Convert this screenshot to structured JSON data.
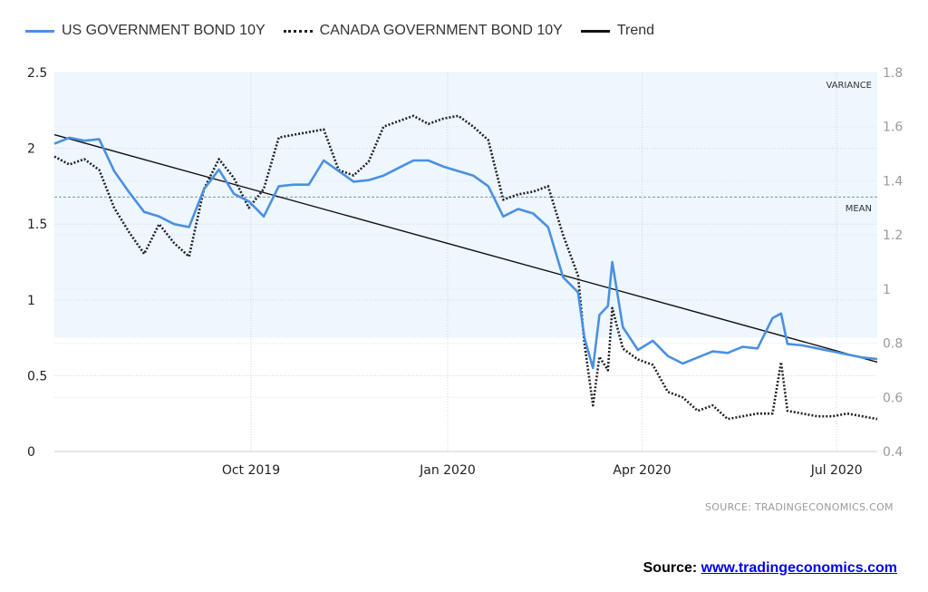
{
  "legend": {
    "us": "US GOVERNMENT BOND 10Y",
    "canada": "CANADA GOVERNMENT BOND 10Y",
    "trend": "Trend"
  },
  "annotations": {
    "variance": "VARIANCE",
    "mean": "MEAN"
  },
  "source_small": "SOURCE:  TRADINGECONOMICS.COM",
  "source_big": {
    "label": "Source:",
    "link": "www.tradingeconomics.com"
  },
  "colors": {
    "us": "#4a90e2",
    "canada": "#222222",
    "trend": "#111111",
    "variance_band": "#eef6fe",
    "mean_line": "#7a9a9a"
  },
  "chart_data": {
    "type": "line",
    "title": "",
    "x_tick_labels": [
      "Oct 2019",
      "Jan 2020",
      "Apr 2020",
      "Jul 2020"
    ],
    "x_tick_dates": [
      "2019-10-01",
      "2020-01-01",
      "2020-04-01",
      "2020-07-01"
    ],
    "x_range": [
      "2019-07-01",
      "2020-07-20"
    ],
    "y_left": {
      "ticks": [
        "0",
        "0.5",
        "1",
        "1.5",
        "2",
        "2.5"
      ],
      "range": [
        0,
        2.5
      ]
    },
    "y_right": {
      "ticks": [
        "0.4",
        "0.6",
        "0.8",
        "1",
        "1.2",
        "1.4",
        "1.6",
        "1.8"
      ],
      "range": [
        0.4,
        1.8
      ]
    },
    "mean_right": 1.34,
    "variance_band_left": [
      0.75,
      2.5
    ],
    "series": [
      {
        "name": "US GOVERNMENT BOND 10Y",
        "axis": "left",
        "style": "solid",
        "x": [
          "2019-07-01",
          "2019-07-08",
          "2019-07-15",
          "2019-07-22",
          "2019-07-29",
          "2019-08-05",
          "2019-08-12",
          "2019-08-19",
          "2019-08-26",
          "2019-09-02",
          "2019-09-09",
          "2019-09-16",
          "2019-09-23",
          "2019-09-30",
          "2019-10-07",
          "2019-10-14",
          "2019-10-21",
          "2019-10-28",
          "2019-11-04",
          "2019-11-11",
          "2019-11-18",
          "2019-11-25",
          "2019-12-02",
          "2019-12-09",
          "2019-12-16",
          "2019-12-23",
          "2019-12-30",
          "2020-01-06",
          "2020-01-13",
          "2020-01-20",
          "2020-01-27",
          "2020-02-03",
          "2020-02-10",
          "2020-02-17",
          "2020-02-24",
          "2020-03-02",
          "2020-03-05",
          "2020-03-09",
          "2020-03-12",
          "2020-03-16",
          "2020-03-18",
          "2020-03-23",
          "2020-03-30",
          "2020-04-06",
          "2020-04-13",
          "2020-04-20",
          "2020-04-27",
          "2020-05-04",
          "2020-05-11",
          "2020-05-18",
          "2020-05-25",
          "2020-06-01",
          "2020-06-05",
          "2020-06-08",
          "2020-06-15",
          "2020-06-22",
          "2020-06-29",
          "2020-07-06",
          "2020-07-13",
          "2020-07-20"
        ],
        "y": [
          2.03,
          2.07,
          2.05,
          2.06,
          1.85,
          1.71,
          1.58,
          1.55,
          1.5,
          1.48,
          1.73,
          1.86,
          1.7,
          1.65,
          1.55,
          1.75,
          1.76,
          1.76,
          1.92,
          1.85,
          1.78,
          1.79,
          1.82,
          1.87,
          1.92,
          1.92,
          1.88,
          1.85,
          1.82,
          1.75,
          1.55,
          1.6,
          1.57,
          1.48,
          1.15,
          1.05,
          0.75,
          0.55,
          0.9,
          0.96,
          1.25,
          0.82,
          0.67,
          0.73,
          0.63,
          0.58,
          0.62,
          0.66,
          0.65,
          0.69,
          0.68,
          0.88,
          0.91,
          0.71,
          0.7,
          0.68,
          0.66,
          0.64,
          0.62,
          0.61
        ]
      },
      {
        "name": "CANADA GOVERNMENT BOND 10Y",
        "axis": "right",
        "style": "dotted",
        "x": [
          "2019-07-01",
          "2019-07-08",
          "2019-07-15",
          "2019-07-22",
          "2019-07-29",
          "2019-08-05",
          "2019-08-12",
          "2019-08-19",
          "2019-08-26",
          "2019-09-02",
          "2019-09-09",
          "2019-09-16",
          "2019-09-23",
          "2019-09-30",
          "2019-10-07",
          "2019-10-14",
          "2019-10-21",
          "2019-10-28",
          "2019-11-04",
          "2019-11-11",
          "2019-11-18",
          "2019-11-25",
          "2019-12-02",
          "2019-12-09",
          "2019-12-16",
          "2019-12-23",
          "2019-12-30",
          "2020-01-06",
          "2020-01-13",
          "2020-01-20",
          "2020-01-27",
          "2020-02-03",
          "2020-02-10",
          "2020-02-17",
          "2020-02-24",
          "2020-03-02",
          "2020-03-05",
          "2020-03-09",
          "2020-03-12",
          "2020-03-16",
          "2020-03-18",
          "2020-03-23",
          "2020-03-30",
          "2020-04-06",
          "2020-04-13",
          "2020-04-20",
          "2020-04-27",
          "2020-05-04",
          "2020-05-11",
          "2020-05-18",
          "2020-05-25",
          "2020-06-01",
          "2020-06-05",
          "2020-06-08",
          "2020-06-15",
          "2020-06-22",
          "2020-06-29",
          "2020-07-06",
          "2020-07-13",
          "2020-07-20"
        ],
        "y": [
          1.49,
          1.46,
          1.48,
          1.44,
          1.3,
          1.21,
          1.13,
          1.24,
          1.17,
          1.12,
          1.37,
          1.48,
          1.41,
          1.3,
          1.37,
          1.56,
          1.57,
          1.58,
          1.59,
          1.44,
          1.42,
          1.47,
          1.6,
          1.62,
          1.64,
          1.61,
          1.63,
          1.64,
          1.6,
          1.55,
          1.33,
          1.35,
          1.36,
          1.38,
          1.2,
          1.05,
          0.8,
          0.57,
          0.75,
          0.7,
          0.93,
          0.78,
          0.74,
          0.72,
          0.62,
          0.6,
          0.55,
          0.57,
          0.52,
          0.53,
          0.54,
          0.54,
          0.73,
          0.55,
          0.54,
          0.53,
          0.53,
          0.54,
          0.53,
          0.52
        ]
      },
      {
        "name": "Trend",
        "axis": "left",
        "style": "solid",
        "x": [
          "2019-07-01",
          "2020-07-20"
        ],
        "y": [
          2.09,
          0.59
        ]
      }
    ]
  }
}
